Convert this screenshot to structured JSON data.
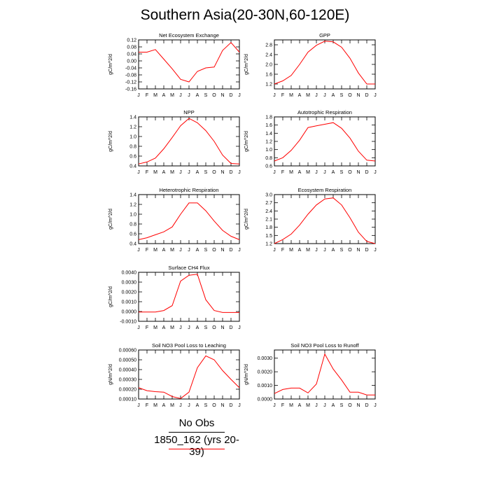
{
  "page": {
    "title": "Southern Asia(20-30N,60-120E)",
    "legend": {
      "obs_label": "No Obs",
      "model_label": "1850_162 (yrs 20-39)"
    },
    "colors": {
      "series": "#ff0000",
      "obs": "#000000"
    }
  },
  "chart_data": [
    {
      "type": "line",
      "title": "Net Ecosystem Exchange",
      "ylabel": "gC/m^2/d",
      "categories": [
        "J",
        "F",
        "M",
        "A",
        "M",
        "J",
        "J",
        "A",
        "S",
        "O",
        "N",
        "D",
        "J"
      ],
      "ylim": [
        -0.16,
        0.12
      ],
      "yticks": [
        -0.16,
        -0.12,
        -0.08,
        -0.04,
        0.0,
        0.04,
        0.08,
        0.12
      ],
      "ytick_labels": [
        "-0.16",
        "-0.12",
        "-0.08",
        "-0.04",
        "0.00",
        "0.04",
        "0.08",
        "0.12"
      ],
      "values": [
        0.05,
        0.05,
        0.065,
        0.01,
        -0.045,
        -0.105,
        -0.12,
        -0.06,
        -0.04,
        -0.035,
        0.06,
        0.105,
        0.05
      ]
    },
    {
      "type": "line",
      "title": "GPP",
      "ylabel": "gC/m^2/d",
      "categories": [
        "J",
        "F",
        "M",
        "A",
        "M",
        "J",
        "J",
        "A",
        "S",
        "O",
        "N",
        "D",
        "J"
      ],
      "ylim": [
        1.0,
        3.0
      ],
      "yticks": [
        1.2,
        1.6,
        2.0,
        2.4,
        2.8
      ],
      "ytick_labels": [
        "1.2",
        "1.6",
        "2.0",
        "2.4",
        "2.8"
      ],
      "values": [
        1.2,
        1.33,
        1.55,
        2.0,
        2.5,
        2.78,
        2.95,
        2.92,
        2.7,
        2.25,
        1.65,
        1.2,
        1.2
      ]
    },
    {
      "type": "line",
      "title": "NPP",
      "ylabel": "gC/m^2/d",
      "categories": [
        "J",
        "F",
        "M",
        "A",
        "M",
        "J",
        "J",
        "A",
        "S",
        "O",
        "N",
        "D",
        "J"
      ],
      "ylim": [
        0.4,
        1.4
      ],
      "yticks": [
        0.4,
        0.6,
        0.8,
        1.0,
        1.2,
        1.4
      ],
      "ytick_labels": [
        "0.4",
        "0.6",
        "0.8",
        "1.0",
        "1.2",
        "1.4"
      ],
      "values": [
        0.44,
        0.48,
        0.56,
        0.75,
        0.98,
        1.22,
        1.37,
        1.28,
        1.12,
        0.9,
        0.62,
        0.45,
        0.44
      ]
    },
    {
      "type": "line",
      "title": "Autotrophic Respiration",
      "ylabel": "gC/m^2/d",
      "categories": [
        "J",
        "F",
        "M",
        "A",
        "M",
        "J",
        "J",
        "A",
        "S",
        "O",
        "N",
        "D",
        "J"
      ],
      "ylim": [
        0.6,
        1.8
      ],
      "yticks": [
        0.6,
        0.8,
        1.0,
        1.2,
        1.4,
        1.6,
        1.8
      ],
      "ytick_labels": [
        "0.6",
        "0.8",
        "1.0",
        "1.2",
        "1.4",
        "1.6",
        "1.8"
      ],
      "values": [
        0.72,
        0.8,
        0.98,
        1.23,
        1.54,
        1.58,
        1.62,
        1.66,
        1.52,
        1.28,
        0.96,
        0.74,
        0.72
      ]
    },
    {
      "type": "line",
      "title": "Heterotrophic Respiration",
      "ylabel": "gC/m^2/d",
      "categories": [
        "J",
        "F",
        "M",
        "A",
        "M",
        "J",
        "J",
        "A",
        "S",
        "O",
        "N",
        "D",
        "J"
      ],
      "ylim": [
        0.4,
        1.4
      ],
      "yticks": [
        0.4,
        0.6,
        0.8,
        1.0,
        1.2,
        1.4
      ],
      "ytick_labels": [
        "0.4",
        "0.6",
        "0.8",
        "1.0",
        "1.2",
        "1.4"
      ],
      "values": [
        0.48,
        0.52,
        0.58,
        0.64,
        0.74,
        1.0,
        1.23,
        1.23,
        1.07,
        0.86,
        0.67,
        0.55,
        0.48
      ]
    },
    {
      "type": "line",
      "title": "Ecosystem Respiration",
      "ylabel": "gC/m^2/d",
      "categories": [
        "J",
        "F",
        "M",
        "A",
        "M",
        "J",
        "J",
        "A",
        "S",
        "O",
        "N",
        "D",
        "J"
      ],
      "ylim": [
        1.2,
        3.0
      ],
      "yticks": [
        1.2,
        1.5,
        1.8,
        2.1,
        2.4,
        2.7,
        3.0
      ],
      "ytick_labels": [
        "1.2",
        "1.5",
        "1.8",
        "2.1",
        "2.4",
        "2.7",
        "3.0"
      ],
      "values": [
        1.2,
        1.35,
        1.55,
        1.88,
        2.28,
        2.62,
        2.84,
        2.88,
        2.62,
        2.15,
        1.62,
        1.28,
        1.2
      ]
    },
    {
      "type": "line",
      "title": "Surface CH4 Flux",
      "ylabel": "gC/m^2/d",
      "categories": [
        "J",
        "F",
        "M",
        "A",
        "M",
        "J",
        "J",
        "A",
        "S",
        "O",
        "N",
        "D",
        "J"
      ],
      "ylim": [
        -0.001,
        0.004
      ],
      "yticks": [
        -0.001,
        0.0,
        0.001,
        0.002,
        0.003,
        0.004
      ],
      "ytick_labels": [
        "-0.0010",
        "0.0000",
        "0.0010",
        "0.0020",
        "0.0030",
        "0.0040"
      ],
      "values": [
        -5e-05,
        -5e-05,
        -5e-05,
        0.0001,
        0.0006,
        0.0031,
        0.0037,
        0.0038,
        0.0012,
        0.0001,
        -0.0001,
        -0.0001,
        -0.0001
      ]
    },
    {
      "type": "line",
      "title": "Soil NO3 Pool Loss to Leaching",
      "ylabel": "gN/m^2/d",
      "categories": [
        "J",
        "F",
        "M",
        "A",
        "M",
        "J",
        "J",
        "A",
        "S",
        "O",
        "N",
        "D",
        "J"
      ],
      "ylim": [
        0.0001,
        0.0006
      ],
      "yticks": [
        0.0001,
        0.0002,
        0.0003,
        0.0004,
        0.0005,
        0.0006
      ],
      "ytick_labels": [
        "0.00010",
        "0.00020",
        "0.00030",
        "0.00040",
        "0.00050",
        "0.00060"
      ],
      "values": [
        0.000215,
        0.000185,
        0.000175,
        0.00017,
        0.000125,
        0.000105,
        0.00017,
        0.00042,
        0.00054,
        0.0005,
        0.00039,
        0.0003,
        0.000215
      ]
    },
    {
      "type": "line",
      "title": "Soil NO3 Pool Loss to Runoff",
      "ylabel": "gN/m^2/d",
      "categories": [
        "J",
        "F",
        "M",
        "A",
        "M",
        "J",
        "J",
        "A",
        "S",
        "O",
        "N",
        "D",
        "J"
      ],
      "ylim": [
        0.0,
        0.0036
      ],
      "yticks": [
        0.0,
        0.001,
        0.002,
        0.003
      ],
      "ytick_labels": [
        "0.0000",
        "0.0010",
        "0.0020",
        "0.0030"
      ],
      "values": [
        0.0004,
        0.0007,
        0.0008,
        0.0008,
        0.00045,
        0.0011,
        0.0033,
        0.0022,
        0.0014,
        0.0005,
        0.0005,
        0.0003,
        0.0003
      ]
    }
  ]
}
